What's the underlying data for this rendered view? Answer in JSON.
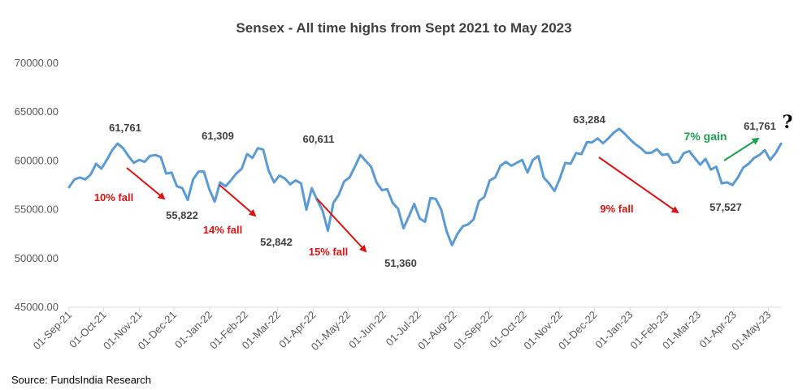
{
  "chart_data": {
    "type": "line",
    "title": "Sensex - All time highs from Sept 2021 to May 2023",
    "xlabel": "",
    "ylabel": "",
    "ylim": [
      45000,
      70000
    ],
    "yticks": [
      "45000.00",
      "50000.00",
      "55000.00",
      "60000.00",
      "65000.00",
      "70000.00"
    ],
    "xticks": [
      "01-Sep-21",
      "01-Oct-21",
      "01-Nov-21",
      "01-Dec-21",
      "01-Jan-22",
      "01-Feb-22",
      "01-Mar-22",
      "01-Apr-22",
      "01-May-22",
      "01-Jun-22",
      "01-Jul-22",
      "01-Aug-22",
      "01-Sep-22",
      "01-Oct-22",
      "01-Nov-22",
      "01-Dec-22",
      "01-Jan-23",
      "01-Feb-23",
      "01-Mar-23",
      "01-Apr-23",
      "01-May-23"
    ],
    "grid": false,
    "line_color": "#5b9bd5",
    "series": [
      {
        "name": "",
        "x_start": "2021-09-01",
        "x_end": "2023-05-12",
        "values": [
          57300,
          58100,
          58300,
          58100,
          58600,
          59700,
          59200,
          60100,
          61100,
          61765,
          61300,
          60500,
          59800,
          60100,
          59900,
          60500,
          60600,
          60400,
          58700,
          58800,
          57400,
          57200,
          56000,
          58100,
          58900,
          58900,
          57100,
          55820,
          57800,
          57400,
          58000,
          58700,
          59200,
          60700,
          60300,
          61300,
          61150,
          59000,
          57800,
          58500,
          58200,
          57600,
          58000,
          57700,
          55000,
          57200,
          56000,
          54900,
          52842,
          55700,
          56500,
          57900,
          58300,
          59400,
          60611,
          60000,
          59400,
          57800,
          57000,
          57100,
          55700,
          55100,
          53100,
          54300,
          55600,
          54100,
          53750,
          56200,
          56100,
          55000,
          52800,
          51360,
          52500,
          53300,
          53500,
          54000,
          55900,
          56300,
          58000,
          58300,
          59500,
          59900,
          59500,
          59800,
          60100,
          58800,
          60100,
          60500,
          58300,
          57700,
          56900,
          58200,
          59800,
          59700,
          60800,
          60700,
          61900,
          61900,
          62300,
          61800,
          62300,
          62900,
          63284,
          62800,
          62200,
          61700,
          61300,
          60800,
          60850,
          61200,
          60600,
          60700,
          59800,
          59900,
          60800,
          61000,
          60300,
          59600,
          60200,
          59100,
          59400,
          57700,
          57800,
          57527,
          58300,
          59300,
          59700,
          60300,
          60600,
          61100,
          60100,
          60800,
          61761
        ]
      }
    ],
    "annotations": [
      {
        "text": "61,761",
        "date": "2021-10-19",
        "type": "peak"
      },
      {
        "text": "55,822",
        "date": "2021-12-20",
        "type": "trough"
      },
      {
        "text": "10% fall",
        "type": "fall"
      },
      {
        "text": "61,309",
        "date": "2022-01-18",
        "type": "peak"
      },
      {
        "text": "52,842",
        "date": "2022-03-07",
        "type": "trough"
      },
      {
        "text": "14% fall",
        "type": "fall"
      },
      {
        "text": "60,611",
        "date": "2022-04-04",
        "type": "peak"
      },
      {
        "text": "51,360",
        "date": "2022-06-17",
        "type": "trough"
      },
      {
        "text": "15% fall",
        "type": "fall"
      },
      {
        "text": "63,284",
        "date": "2022-12-01",
        "type": "peak"
      },
      {
        "text": "57,527",
        "date": "2023-03-28",
        "type": "trough"
      },
      {
        "text": "9% fall",
        "type": "fall"
      },
      {
        "text": "7% gain",
        "type": "gain"
      },
      {
        "text": "61,761",
        "date": "2023-05-12",
        "type": "current"
      },
      {
        "text": "?",
        "type": "question"
      }
    ]
  },
  "source": "Source: FundsIndia Research"
}
